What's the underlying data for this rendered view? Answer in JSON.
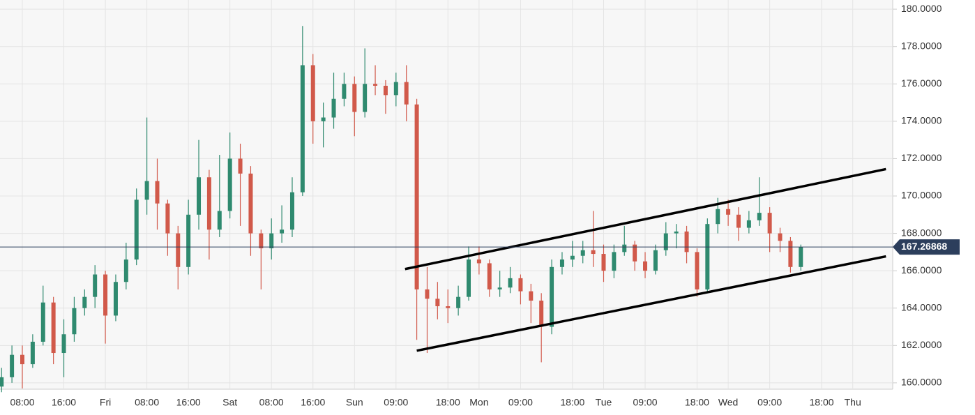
{
  "chart_data": {
    "type": "candlestick",
    "categories": [
      null,
      null,
      "08:00",
      null,
      null,
      null,
      "16:00",
      null,
      null,
      null,
      "Fri",
      null,
      null,
      null,
      "08:00",
      null,
      null,
      null,
      "16:00",
      null,
      null,
      null,
      "Sat",
      null,
      null,
      null,
      "08:00",
      null,
      null,
      null,
      "16:00",
      null,
      null,
      null,
      "Sun",
      null,
      null,
      null,
      "09:00",
      null,
      null,
      null,
      null,
      "18:00",
      null,
      null,
      "Mon",
      null,
      null,
      null,
      "09:00",
      null,
      null,
      null,
      null,
      "18:00",
      null,
      null,
      "Tue",
      null,
      null,
      null,
      "09:00",
      null,
      null,
      null,
      null,
      "18:00",
      null,
      null,
      "Wed",
      null,
      null,
      null,
      "09:00",
      null,
      null,
      null,
      null,
      "18:00",
      null,
      null,
      "Thu",
      null,
      null,
      null
    ],
    "open": [
      159.8,
      160.3,
      161.5,
      161.0,
      162.2,
      164.3,
      161.6,
      162.6,
      164.0,
      164.6,
      165.8,
      163.6,
      165.4,
      166.6,
      169.8,
      170.8,
      169.6,
      168.0,
      166.2,
      169.0,
      171.0,
      168.2,
      169.2,
      172.0,
      171.2,
      168.0,
      167.2,
      168.0,
      168.2,
      170.2,
      177.0,
      174.0,
      174.2,
      175.2,
      176.0,
      174.5,
      176.0,
      175.9,
      175.4,
      176.1,
      174.9,
      165.0,
      164.5,
      164.1,
      164.0,
      164.6,
      166.6,
      166.4,
      165.0,
      165.1,
      165.6,
      164.9,
      164.4,
      163.0,
      166.2,
      166.6,
      166.8,
      167.1,
      166.9,
      166.0,
      167.0,
      167.4,
      166.5,
      166.0,
      167.1,
      168.0,
      168.1,
      167.0,
      165.0,
      168.5,
      169.3,
      169.0,
      168.3,
      168.7,
      169.1,
      168.0,
      167.6,
      166.2,
      null,
      null,
      null,
      null,
      null,
      null,
      null,
      null
    ],
    "high": [
      160.8,
      162.0,
      162.0,
      162.6,
      165.2,
      164.6,
      163.4,
      164.6,
      165.0,
      166.3,
      166.0,
      165.8,
      167.5,
      170.4,
      174.2,
      172.0,
      169.8,
      168.4,
      169.8,
      173.0,
      171.4,
      172.2,
      173.4,
      172.8,
      171.6,
      168.2,
      168.8,
      169.5,
      171.0,
      179.1,
      177.6,
      175.0,
      176.6,
      176.6,
      176.4,
      177.9,
      177.0,
      176.2,
      176.6,
      177.0,
      175.2,
      166.2,
      165.4,
      165.0,
      165.2,
      167.3,
      167.3,
      166.6,
      166.0,
      166.2,
      165.8,
      165.3,
      164.8,
      166.6,
      167.0,
      167.6,
      167.6,
      169.2,
      167.4,
      167.4,
      168.4,
      167.6,
      167.0,
      167.4,
      168.6,
      168.5,
      168.4,
      167.2,
      168.8,
      169.9,
      169.8,
      169.4,
      169.2,
      171.0,
      169.4,
      168.3,
      167.8,
      167.4,
      null,
      null,
      null,
      null,
      null,
      null,
      null,
      null
    ],
    "low": [
      159.5,
      160.0,
      159.7,
      160.8,
      162.0,
      161.0,
      160.3,
      162.2,
      163.6,
      164.0,
      162.1,
      163.3,
      165.0,
      166.3,
      169.0,
      168.2,
      166.8,
      165.0,
      165.8,
      168.2,
      166.6,
      167.8,
      168.8,
      168.4,
      166.8,
      165.0,
      166.6,
      167.5,
      167.8,
      170.0,
      172.8,
      172.6,
      173.6,
      174.8,
      173.2,
      174.2,
      175.4,
      174.4,
      174.8,
      174.0,
      162.3,
      161.6,
      163.4,
      163.2,
      163.6,
      164.4,
      165.8,
      164.6,
      164.6,
      164.8,
      164.2,
      163.2,
      161.1,
      162.6,
      165.8,
      166.2,
      166.4,
      166.2,
      165.4,
      165.6,
      166.8,
      166.0,
      165.6,
      165.8,
      166.8,
      167.2,
      166.4,
      164.6,
      164.8,
      168.0,
      168.4,
      167.6,
      168.0,
      168.4,
      167.0,
      167.0,
      165.9,
      166.0,
      null,
      null,
      null,
      null,
      null,
      null,
      null,
      null
    ],
    "close": [
      160.3,
      161.5,
      161.0,
      162.2,
      164.3,
      161.6,
      162.6,
      164.0,
      164.6,
      165.8,
      163.6,
      165.4,
      166.6,
      169.8,
      170.8,
      169.6,
      168.0,
      166.2,
      169.0,
      171.0,
      168.2,
      169.2,
      172.0,
      171.2,
      168.0,
      167.2,
      168.0,
      168.2,
      170.2,
      177.0,
      174.0,
      174.2,
      175.2,
      176.0,
      174.5,
      176.0,
      175.9,
      175.4,
      176.1,
      174.9,
      165.0,
      164.5,
      164.1,
      164.0,
      164.6,
      166.6,
      166.4,
      165.0,
      165.1,
      165.6,
      164.9,
      164.4,
      163.0,
      166.2,
      166.6,
      166.8,
      167.1,
      166.9,
      166.0,
      167.0,
      167.4,
      166.5,
      166.0,
      167.1,
      168.0,
      168.1,
      167.0,
      165.0,
      168.5,
      169.3,
      169.0,
      168.3,
      168.7,
      169.1,
      168.0,
      167.6,
      166.2,
      167.27,
      null,
      null,
      null,
      null,
      null,
      null,
      null,
      null
    ],
    "up_color": "#2f8a6f",
    "down_color": "#d1594a",
    "ylim": [
      159.66,
      180.49
    ],
    "yticks": [
      {
        "value": 160,
        "label": "160.0000"
      },
      {
        "value": 162,
        "label": "162.0000"
      },
      {
        "value": 164,
        "label": "164.0000"
      },
      {
        "value": 166,
        "label": "166.0000"
      },
      {
        "value": 168,
        "label": "168.0000"
      },
      {
        "value": 170,
        "label": "170.0000"
      },
      {
        "value": 172,
        "label": "172.0000"
      },
      {
        "value": 174,
        "label": "174.0000"
      },
      {
        "value": 176,
        "label": "176.0000"
      },
      {
        "value": 178,
        "label": "178.0000"
      },
      {
        "value": 180,
        "label": "180.0000"
      }
    ],
    "grid": true,
    "last_price": 167.26868,
    "last_price_color": "#2c3e5c",
    "trendlines": [
      {
        "x": [
          38.87,
          85.2
        ],
        "y": [
          166.09,
          171.44
        ]
      },
      {
        "x": [
          40.0,
          85.2
        ],
        "y": [
          161.72,
          166.77
        ]
      }
    ]
  }
}
